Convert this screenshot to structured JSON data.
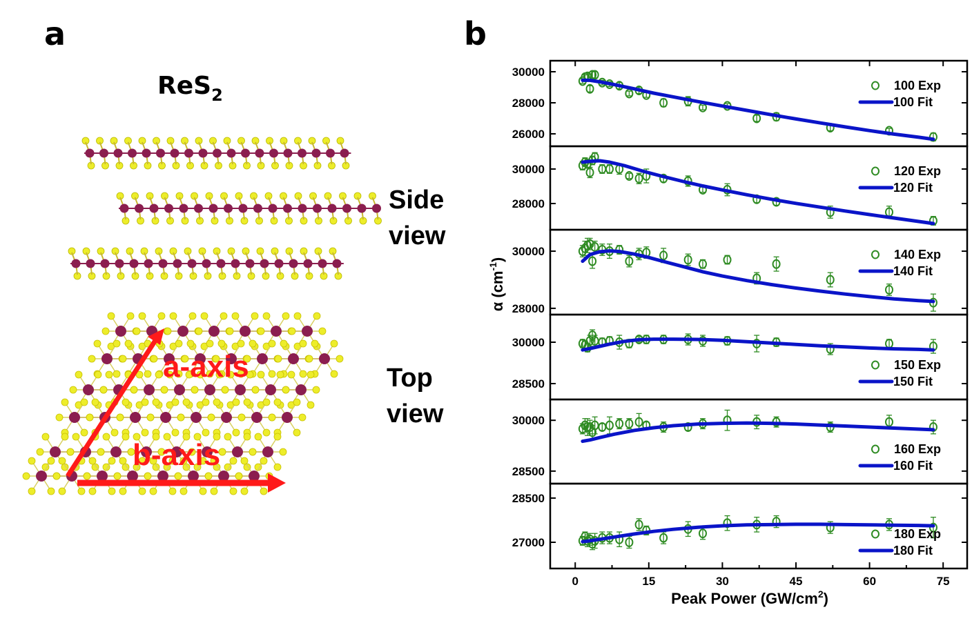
{
  "figure": {
    "panel_a_label": "a",
    "panel_b_label": "b",
    "formula_main": "ReS",
    "formula_sub": "2",
    "side_view_line1": "Side",
    "side_view_line2": "view",
    "top_view_line1": "Top",
    "top_view_line2": "view",
    "a_axis_label": "a-axis",
    "b_axis_label": "b-axis"
  },
  "colors": {
    "exp_marker": "#2e8b22",
    "fit_line": "#0a14c8",
    "re_atom": "#8b1e4f",
    "s_atom": "#eded2a",
    "axis_arrow": "#ff1a1a"
  },
  "chart_data": {
    "type": "scatter",
    "title": "",
    "xlabel": "Peak Power (GW/cm",
    "xlabel_sup": "2",
    "xlabel_end": ")",
    "ylabel": "α (cm",
    "ylabel_sup": "-1",
    "ylabel_end": ")",
    "xlim": [
      -5.1,
      79.9
    ],
    "xticks": [
      0,
      15,
      30,
      45,
      60,
      75
    ],
    "xtick_labels": [
      "0",
      "15",
      "30",
      "45",
      "60",
      "75"
    ],
    "grid": false,
    "legend_position": "right",
    "x": [
      1.5,
      2,
      2.5,
      3,
      3.5,
      4,
      5.5,
      7,
      9,
      11,
      13,
      14.5,
      18,
      23,
      26,
      31,
      37,
      41,
      52,
      64,
      73
    ],
    "panels": [
      {
        "name": "100",
        "ylim": [
          25200,
          30710
        ],
        "yticks": [
          26000,
          28000,
          30000
        ],
        "ytick_labels": [
          "26000",
          "28000",
          "30000"
        ],
        "legend_exp": "100 Exp",
        "legend_fit": "100 Fit",
        "legend_vpos": "top",
        "exp": [
          29400,
          29650,
          29700,
          28900,
          29800,
          29800,
          29300,
          29200,
          29100,
          28600,
          28800,
          28500,
          28000,
          28100,
          27700,
          27800,
          27000,
          27100,
          26400,
          26200,
          25800
        ],
        "err": [
          150,
          150,
          200,
          200,
          200,
          200,
          150,
          150,
          200,
          150,
          200,
          150,
          250,
          300,
          150,
          150,
          200,
          250,
          200,
          150,
          250
        ],
        "fit_x": [
          1.5,
          3,
          5,
          8,
          12,
          16,
          20,
          25,
          30,
          35,
          40,
          45,
          50,
          55,
          60,
          65,
          70,
          73
        ],
        "fit_y": [
          29450,
          29450,
          29350,
          29170,
          28900,
          28620,
          28380,
          28080,
          27790,
          27510,
          27230,
          26960,
          26700,
          26450,
          26210,
          25980,
          25780,
          25650
        ]
      },
      {
        "name": "120",
        "ylim": [
          26480,
          31320
        ],
        "yticks": [
          28000,
          30000
        ],
        "ytick_labels": [
          "28000",
          "30000"
        ],
        "legend_exp": "120 Exp",
        "legend_fit": "120 Fit",
        "legend_vpos": "top",
        "exp": [
          30200,
          30400,
          30300,
          29800,
          30500,
          30700,
          30000,
          30000,
          30000,
          29600,
          29450,
          29600,
          29450,
          29300,
          28800,
          28800,
          28250,
          28100,
          27500,
          27500,
          27000
        ],
        "err": [
          250,
          250,
          250,
          300,
          250,
          250,
          250,
          250,
          300,
          150,
          300,
          400,
          200,
          300,
          150,
          350,
          200,
          200,
          350,
          350,
          250
        ],
        "fit_x": [
          1.5,
          3,
          5,
          7,
          10,
          14,
          18,
          22,
          26,
          30,
          35,
          40,
          45,
          50,
          55,
          60,
          65,
          70,
          73
        ],
        "fit_y": [
          30400,
          30450,
          30480,
          30400,
          30200,
          29860,
          29560,
          29280,
          29020,
          28790,
          28510,
          28250,
          28010,
          27790,
          27570,
          27360,
          27160,
          26960,
          26840
        ]
      },
      {
        "name": "140",
        "ylim": [
          27780,
          30750
        ],
        "yticks": [
          28000,
          30000
        ],
        "ytick_labels": [
          "28000",
          "30000"
        ],
        "legend_exp": "140 Exp",
        "legend_fit": "140 Fit",
        "legend_vpos": "top",
        "exp": [
          30000,
          30100,
          30200,
          30250,
          29650,
          30150,
          30050,
          30000,
          30050,
          29650,
          29900,
          29950,
          29850,
          29700,
          29550,
          29700,
          29050,
          29550,
          29000,
          28650,
          28200
        ],
        "err": [
          200,
          250,
          250,
          200,
          250,
          200,
          200,
          250,
          150,
          200,
          200,
          200,
          250,
          200,
          150,
          150,
          200,
          250,
          250,
          200,
          300
        ],
        "fit_x": [
          1.5,
          3,
          5,
          7,
          9,
          12,
          15,
          18,
          22,
          26,
          30,
          35,
          40,
          45,
          50,
          55,
          60,
          65,
          70,
          73
        ],
        "fit_y": [
          29650,
          29880,
          29980,
          30010,
          29990,
          29900,
          29780,
          29640,
          29460,
          29280,
          29130,
          28970,
          28830,
          28710,
          28600,
          28500,
          28410,
          28330,
          28270,
          28240
        ]
      },
      {
        "name": "150",
        "ylim": [
          27925,
          31000
        ],
        "yticks": [
          28500,
          30000
        ],
        "ytick_labels": [
          "28500",
          "30000"
        ],
        "legend_exp": "150 Exp",
        "legend_fit": "150 Fit",
        "legend_vpos": "bottom",
        "exp": [
          29950,
          29900,
          29800,
          30050,
          30250,
          30050,
          30000,
          30050,
          30000,
          29950,
          30100,
          30100,
          30100,
          30100,
          30050,
          30050,
          29950,
          30000,
          29750,
          29950,
          29850
        ],
        "err": [
          150,
          150,
          150,
          200,
          200,
          200,
          150,
          150,
          250,
          150,
          100,
          150,
          150,
          200,
          200,
          150,
          300,
          150,
          200,
          150,
          250
        ],
        "fit_x": [
          1.5,
          3,
          5,
          7,
          10,
          13,
          16,
          20,
          25,
          30,
          35,
          40,
          45,
          50,
          55,
          60,
          65,
          70,
          73
        ],
        "fit_y": [
          29720,
          29770,
          29850,
          29930,
          30030,
          30090,
          30110,
          30110,
          30100,
          30070,
          30020,
          29970,
          29920,
          29870,
          29830,
          29790,
          29760,
          29740,
          29720
        ]
      },
      {
        "name": "160",
        "ylim": [
          28130,
          30615
        ],
        "yticks": [
          28500,
          30000
        ],
        "ytick_labels": [
          "28500",
          "30000"
        ],
        "legend_exp": "160 Exp",
        "legend_fit": "160 Fit",
        "legend_vpos": "bottom",
        "exp": [
          29750,
          29850,
          29800,
          29800,
          29650,
          29850,
          29800,
          29850,
          29900,
          29900,
          29950,
          29850,
          29800,
          29800,
          29900,
          30000,
          29950,
          29950,
          29800,
          29950,
          29800
        ],
        "err": [
          150,
          200,
          250,
          200,
          200,
          250,
          100,
          250,
          150,
          150,
          250,
          100,
          150,
          100,
          150,
          300,
          200,
          150,
          150,
          200,
          200
        ],
        "fit_x": [
          1.5,
          3,
          5,
          8,
          12,
          16,
          20,
          25,
          30,
          35,
          40,
          45,
          50,
          55,
          60,
          65,
          70,
          73
        ],
        "fit_y": [
          29380,
          29420,
          29490,
          29590,
          29700,
          29780,
          29840,
          29890,
          29910,
          29920,
          29910,
          29890,
          29860,
          29830,
          29800,
          29770,
          29740,
          29720
        ]
      },
      {
        "name": "180",
        "ylim": [
          26110,
          28990
        ],
        "yticks": [
          27000,
          28500
        ],
        "ytick_labels": [
          "27000",
          "28500"
        ],
        "legend_exp": "180 Exp",
        "legend_fit": "180 Fit",
        "legend_vpos": "bottom",
        "exp": [
          27050,
          27200,
          27050,
          27100,
          26950,
          27050,
          27150,
          27150,
          27100,
          27000,
          27600,
          27400,
          27150,
          27450,
          27300,
          27650,
          27600,
          27700,
          27500,
          27600,
          27500
        ],
        "err": [
          150,
          150,
          200,
          200,
          200,
          250,
          200,
          200,
          250,
          200,
          200,
          150,
          200,
          250,
          200,
          250,
          250,
          200,
          200,
          200,
          350
        ],
        "fit_x": [
          1.5,
          3,
          5,
          8,
          12,
          16,
          20,
          25,
          30,
          35,
          40,
          45,
          50,
          55,
          60,
          65,
          70,
          73
        ],
        "fit_y": [
          27020,
          27050,
          27100,
          27180,
          27280,
          27370,
          27440,
          27510,
          27560,
          27590,
          27600,
          27610,
          27610,
          27600,
          27590,
          27580,
          27570,
          27560
        ]
      }
    ]
  }
}
